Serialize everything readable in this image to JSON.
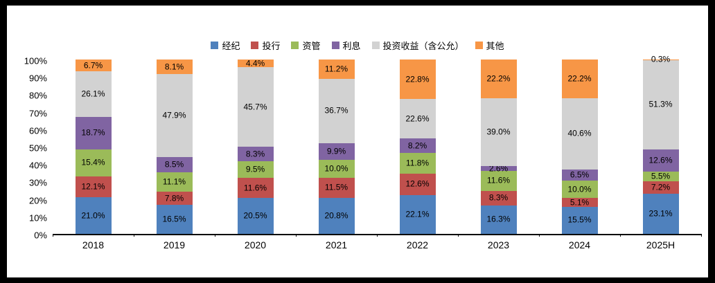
{
  "frame": {
    "background": "#000000",
    "plot_background": "#FFFFFF"
  },
  "chart_data": {
    "type": "bar",
    "variant": "stacked-100-percent-column",
    "title": "",
    "categories": [
      "2018",
      "2019",
      "2020",
      "2021",
      "2022",
      "2023",
      "2024",
      "2025H"
    ],
    "series": [
      {
        "name": "经纪",
        "color": "#4F81BD",
        "values": [
          21.0,
          16.5,
          20.5,
          20.8,
          22.1,
          16.3,
          15.5,
          23.1
        ]
      },
      {
        "name": "投行",
        "color": "#C0504D",
        "values": [
          12.1,
          7.8,
          11.6,
          11.5,
          12.6,
          8.3,
          5.1,
          7.2
        ]
      },
      {
        "name": "资管",
        "color": "#9BBB59",
        "values": [
          15.4,
          11.1,
          9.5,
          10.0,
          11.8,
          11.6,
          10.0,
          5.5
        ]
      },
      {
        "name": "利息",
        "color": "#8064A2",
        "values": [
          18.7,
          8.5,
          8.3,
          9.9,
          8.2,
          2.6,
          6.5,
          12.6
        ]
      },
      {
        "name": "投资收益（含公允）",
        "color": "#D2D2D2",
        "values": [
          26.1,
          47.9,
          45.7,
          36.7,
          22.6,
          39.0,
          40.6,
          51.3
        ]
      },
      {
        "name": "其他",
        "color": "#F79646",
        "values": [
          6.7,
          8.1,
          4.4,
          11.2,
          22.8,
          22.2,
          22.2,
          0.3
        ]
      }
    ],
    "data_label_suffix": "%",
    "data_label_decimals": 1,
    "y_axis": {
      "min": 0,
      "max": 100,
      "step": 10,
      "tick_suffix": "%"
    },
    "ylim": [
      0,
      100
    ],
    "legend_position": "top",
    "grid": false
  }
}
